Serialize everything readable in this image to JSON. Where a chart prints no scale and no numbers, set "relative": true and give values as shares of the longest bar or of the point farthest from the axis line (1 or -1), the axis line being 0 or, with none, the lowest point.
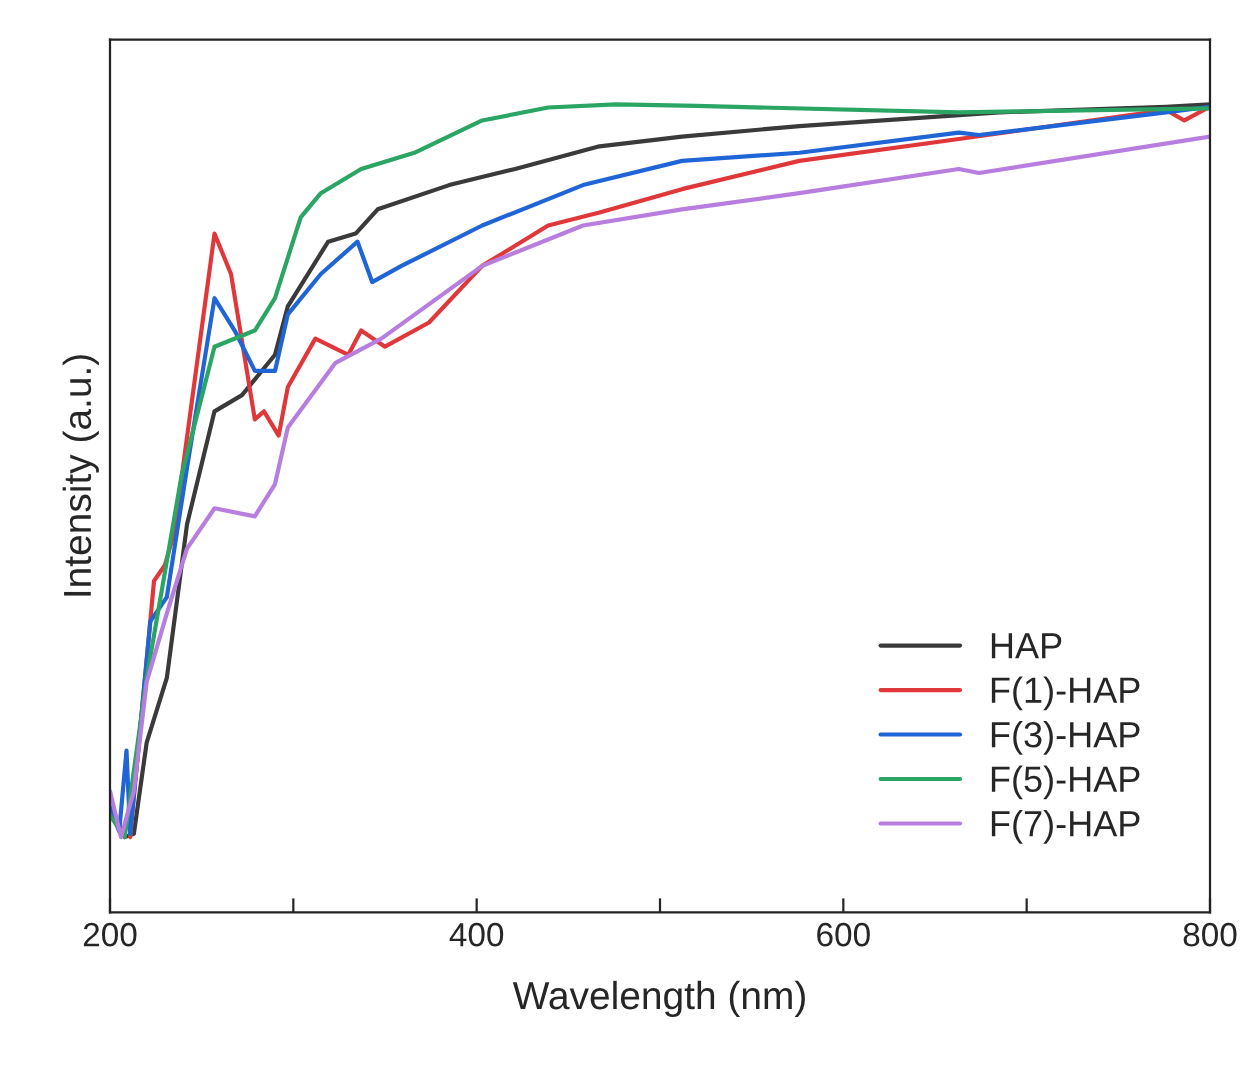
{
  "chart_data": {
    "type": "line",
    "relative": true,
    "xlabel": "Wavelength (nm)",
    "ylabel": "Intensity (a.u.)",
    "xlim": [
      200,
      800
    ],
    "xticks": [
      200,
      {
        "value": 300,
        "label": null
      },
      400,
      {
        "value": 500,
        "label": null
      },
      600,
      {
        "value": 700,
        "label": null
      },
      800
    ],
    "grid": false,
    "legend": "bottom right",
    "marker": "none",
    "line_style": "solid",
    "series": [
      {
        "name": "HAP",
        "color": "#3a3a3a",
        "x": [
          200,
          208,
          213,
          220,
          231,
          242,
          257,
          272,
          290,
          297,
          319,
          334,
          346,
          385,
          421,
          467,
          512,
          576,
          685,
          776,
          800
        ],
        "values": [
          0.13,
          0.093,
          0.097,
          0.21,
          0.29,
          0.48,
          0.62,
          0.64,
          0.69,
          0.75,
          0.83,
          0.84,
          0.87,
          0.9,
          0.92,
          0.948,
          0.96,
          0.973,
          0.99,
          0.997,
          1.0
        ]
      },
      {
        "name": "F(1)-HAP",
        "color": "#e0383a",
        "x": [
          211,
          224,
          230,
          235,
          257,
          266,
          279,
          284,
          292,
          297,
          312,
          330,
          337,
          350,
          374,
          403,
          439,
          467,
          512,
          576,
          663,
          776,
          786,
          800
        ],
        "values": [
          0.093,
          0.41,
          0.43,
          0.47,
          0.84,
          0.79,
          0.61,
          0.62,
          0.59,
          0.65,
          0.71,
          0.69,
          0.72,
          0.7,
          0.73,
          0.8,
          0.85,
          0.866,
          0.895,
          0.93,
          0.957,
          0.993,
          0.98,
          0.997
        ]
      },
      {
        "name": "F(3)-HAP",
        "color": "#1f65d6",
        "x": [
          200,
          205,
          209,
          211,
          222,
          231,
          242,
          257,
          268,
          279,
          290,
          297,
          315,
          335,
          343,
          359,
          403,
          458,
          512,
          576,
          663,
          674,
          776,
          800
        ],
        "values": [
          0.13,
          0.1,
          0.2,
          0.097,
          0.36,
          0.39,
          0.55,
          0.76,
          0.72,
          0.67,
          0.67,
          0.74,
          0.79,
          0.83,
          0.78,
          0.8,
          0.85,
          0.9,
          0.93,
          0.94,
          0.965,
          0.962,
          0.99,
          0.997
        ]
      },
      {
        "name": "F(5)-HAP",
        "color": "#2aa564",
        "x": [
          200,
          208,
          220,
          239,
          257,
          279,
          290,
          304,
          315,
          337,
          366,
          403,
          439,
          476,
          520,
          663,
          800
        ],
        "values": [
          0.12,
          0.093,
          0.29,
          0.54,
          0.7,
          0.72,
          0.76,
          0.86,
          0.89,
          0.92,
          0.94,
          0.98,
          0.996,
          1.0,
          0.998,
          0.99,
          0.995
        ]
      },
      {
        "name": "F(7)-HAP",
        "color": "#b77ee0",
        "x": [
          200,
          206,
          213,
          220,
          231,
          242,
          257,
          279,
          290,
          297,
          323,
          348,
          403,
          458,
          512,
          576,
          663,
          674,
          800
        ],
        "values": [
          0.15,
          0.093,
          0.15,
          0.285,
          0.37,
          0.45,
          0.5,
          0.49,
          0.53,
          0.6,
          0.68,
          0.71,
          0.8,
          0.85,
          0.87,
          0.89,
          0.92,
          0.915,
          0.96
        ]
      }
    ]
  }
}
